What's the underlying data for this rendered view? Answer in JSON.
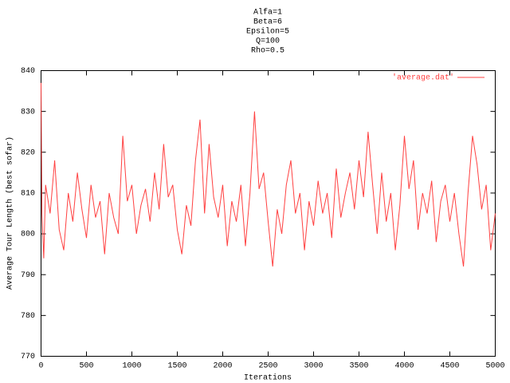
{
  "chart_data": {
    "type": "line",
    "title": [
      "Alfa=1",
      "Beta=6",
      "Epsilon=5",
      "Q=100",
      "Rho=0.5"
    ],
    "xlabel": "Iterations",
    "ylabel": "Average Tour Length (best sofar)",
    "legend": "top-right",
    "x": [
      0,
      10,
      30,
      50,
      100,
      150,
      200,
      250,
      300,
      350,
      400,
      450,
      500,
      550,
      600,
      650,
      700,
      750,
      800,
      850,
      900,
      950,
      1000,
      1050,
      1100,
      1150,
      1200,
      1250,
      1300,
      1350,
      1400,
      1450,
      1500,
      1550,
      1600,
      1650,
      1700,
      1750,
      1800,
      1850,
      1900,
      1950,
      2000,
      2050,
      2100,
      2150,
      2200,
      2250,
      2300,
      2350,
      2400,
      2450,
      2500,
      2550,
      2600,
      2650,
      2700,
      2750,
      2800,
      2850,
      2900,
      2950,
      3000,
      3050,
      3100,
      3150,
      3200,
      3250,
      3300,
      3350,
      3400,
      3450,
      3500,
      3550,
      3600,
      3650,
      3700,
      3750,
      3800,
      3850,
      3900,
      3950,
      4000,
      4050,
      4100,
      4150,
      4200,
      4250,
      4300,
      4350,
      4400,
      4450,
      4500,
      4550,
      4600,
      4650,
      4700,
      4750,
      4800,
      4850,
      4900,
      4950,
      5000
    ],
    "series": [
      {
        "name": "'average.dat'",
        "color": "#ff4040",
        "values": [
          837,
          805,
          794,
          812,
          805,
          818,
          801,
          796,
          810,
          803,
          815,
          806,
          799,
          812,
          804,
          808,
          795,
          810,
          804,
          800,
          824,
          808,
          812,
          800,
          807,
          811,
          803,
          815,
          806,
          822,
          809,
          812,
          801,
          795,
          807,
          802,
          818,
          828,
          805,
          822,
          809,
          804,
          812,
          797,
          808,
          803,
          812,
          797,
          810,
          830,
          811,
          815,
          803,
          792,
          806,
          800,
          812,
          818,
          805,
          810,
          796,
          808,
          802,
          813,
          805,
          810,
          799,
          816,
          804,
          810,
          815,
          806,
          818,
          809,
          825,
          812,
          800,
          815,
          803,
          810,
          796,
          807,
          824,
          811,
          818,
          801,
          810,
          805,
          813,
          798,
          808,
          812,
          803,
          810,
          800,
          792,
          810,
          824,
          817,
          806,
          812,
          796,
          805
        ]
      }
    ],
    "xlim": [
      0,
      5000
    ],
    "ylim": [
      770,
      840
    ],
    "xticks": [
      0,
      500,
      1000,
      1500,
      2000,
      2500,
      3000,
      3500,
      4000,
      4500,
      5000
    ],
    "yticks": [
      770,
      780,
      790,
      800,
      810,
      820,
      830,
      840
    ]
  }
}
